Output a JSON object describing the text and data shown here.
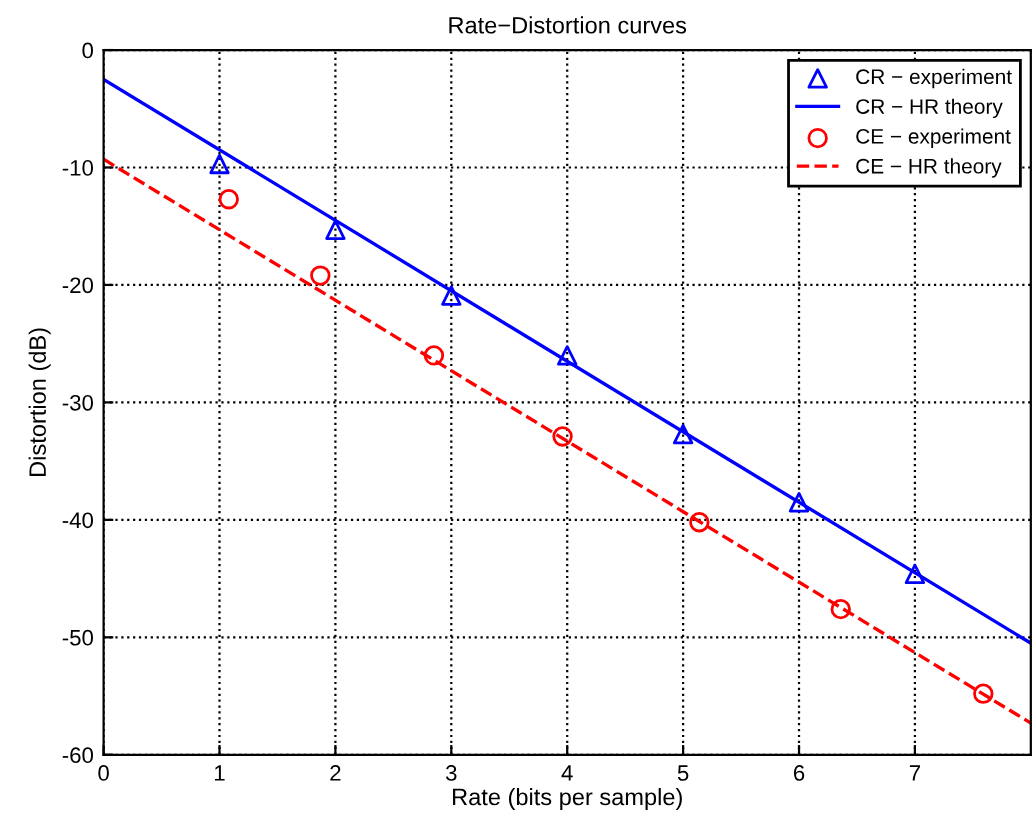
{
  "chart_data": {
    "type": "line",
    "title": "Rate−Distortion curves",
    "xlabel": "Rate (bits per sample)",
    "ylabel": "Distortion (dB)",
    "xlim": [
      0,
      8
    ],
    "ylim": [
      -60,
      0
    ],
    "xticks": [
      0,
      1,
      2,
      3,
      4,
      5,
      6,
      7
    ],
    "yticks": [
      -60,
      -50,
      -40,
      -30,
      -20,
      -10,
      0
    ],
    "grid": true,
    "legend": "top right",
    "series": [
      {
        "name": "CR − experiment",
        "type": "scatter",
        "marker": "triangle",
        "color": "#0000ff",
        "x": [
          1,
          2,
          3,
          4,
          5,
          6,
          7
        ],
        "values": [
          -9.7,
          -15.3,
          -20.9,
          -26.0,
          -32.7,
          -38.5,
          -44.6
        ]
      },
      {
        "name": "CR − HR theory",
        "line_style": "solid",
        "color": "#0000ff",
        "x": [
          0,
          8
        ],
        "values": [
          -2.5,
          -50.5
        ]
      },
      {
        "name": "CE − experiment",
        "type": "scatter",
        "marker": "circle",
        "color": "#ff0000",
        "x": [
          1.08,
          1.87,
          2.85,
          3.96,
          5.14,
          6.36,
          7.59
        ],
        "values": [
          -12.7,
          -19.2,
          -26.0,
          -32.9,
          -40.2,
          -47.6,
          -54.8
        ]
      },
      {
        "name": "CE − HR theory",
        "line_style": "dashed",
        "color": "#ff0000",
        "x": [
          0,
          8
        ],
        "values": [
          -9.3,
          -57.3
        ]
      }
    ]
  }
}
